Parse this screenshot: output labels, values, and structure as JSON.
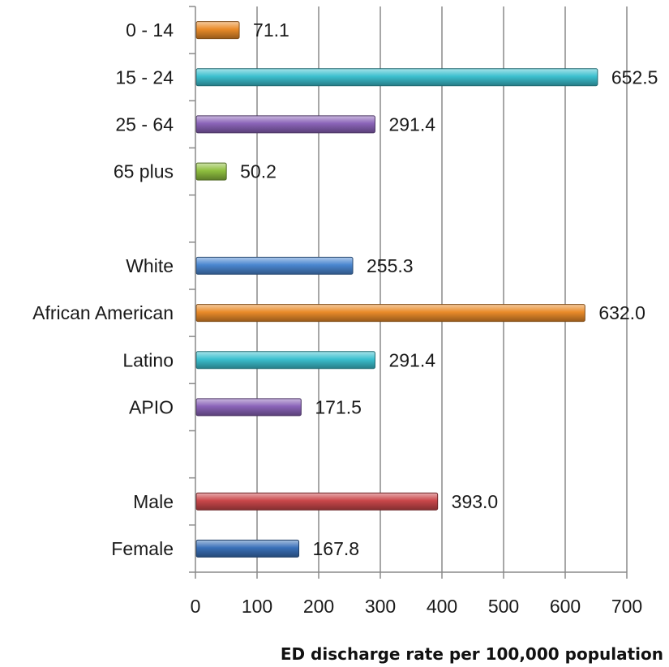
{
  "chart_data": {
    "type": "bar",
    "orientation": "horizontal",
    "xlabel": "ED discharge rate per 100,000 population",
    "ylabel": "",
    "xlim": [
      0,
      700
    ],
    "x_ticks": [
      "0",
      "100",
      "200",
      "300",
      "400",
      "500",
      "600",
      "700"
    ],
    "grid": "vertical",
    "categories": [
      "0 - 14",
      "15 - 24",
      "25 - 64",
      "65 plus",
      "",
      "White",
      "African American",
      "Latino",
      "APIO",
      "",
      "Male",
      "Female"
    ],
    "values": [
      71.1,
      652.5,
      291.4,
      50.2,
      null,
      255.3,
      632.0,
      291.4,
      171.5,
      null,
      393.0,
      167.8
    ],
    "value_labels": [
      "71.1",
      "652.5",
      "291.4",
      "50.2",
      "",
      "255.3",
      "632.0",
      "291.4",
      "171.5",
      "",
      "393.0",
      "167.8"
    ],
    "colors": [
      "#e98b2a",
      "#3cc0cf",
      "#8a63b8",
      "#8fbf3f",
      "",
      "#4a86d0",
      "#e98b2a",
      "#3cc0cf",
      "#8a63b8",
      "",
      "#c9474a",
      "#3a70b8"
    ]
  }
}
